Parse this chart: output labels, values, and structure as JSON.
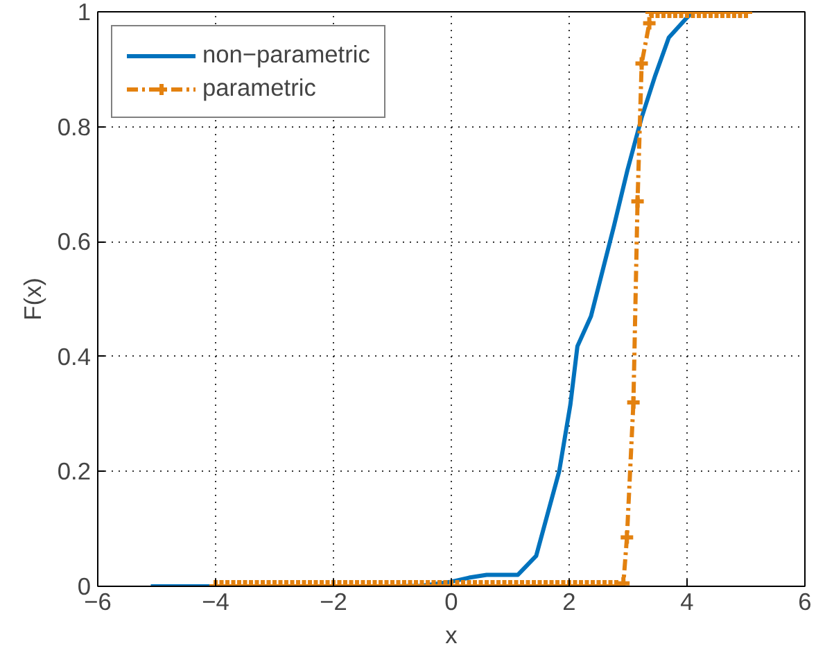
{
  "chart_data": {
    "type": "line",
    "xlabel": "x",
    "ylabel": "F(x)",
    "xlim": [
      -6,
      6
    ],
    "ylim": [
      0,
      1
    ],
    "xticks": [
      {
        "value": -6,
        "label": "−6"
      },
      {
        "value": -4,
        "label": "−4"
      },
      {
        "value": -2,
        "label": "−2"
      },
      0,
      2,
      4,
      6
    ],
    "yticks": [
      0,
      0.2,
      0.4,
      0.6,
      0.8,
      1
    ],
    "grid": true,
    "legend": "top left",
    "series": [
      {
        "name": "non−parametric",
        "color": "#0072bd",
        "marker": "none",
        "line_style": "solid",
        "x": [
          -5.1,
          -4,
          -1,
          -0.5,
          0,
          0.3,
          0.6,
          1.13,
          1.44,
          1.83,
          2.02,
          2.14,
          2.37,
          2.76,
          2.99,
          3.23,
          3.46,
          3.69,
          4.0,
          4.1
        ],
        "values": [
          0,
          0,
          0,
          0.001,
          0.008,
          0.015,
          0.02,
          0.02,
          0.053,
          0.2,
          0.316,
          0.418,
          0.47,
          0.627,
          0.725,
          0.816,
          0.889,
          0.955,
          0.99,
          1.0
        ]
      },
      {
        "name": "parametric",
        "color": "#e3810f",
        "marker": "cross",
        "line_style": "dashdot",
        "x": [
          -4.0,
          -3.9,
          -3.8,
          -3.7,
          -3.6,
          -3.5,
          -3.4,
          -3.3,
          -3.2,
          -3.1,
          -3.0,
          -2.9,
          -2.8,
          -2.7,
          -2.6,
          -2.5,
          -2.4,
          -2.3,
          -2.2,
          -2.1,
          -2.0,
          -1.9,
          -1.8,
          -1.7,
          -1.6,
          -1.5,
          -1.4,
          -1.3,
          -1.2,
          -1.1,
          -1.0,
          -0.9,
          -0.8,
          -0.7,
          -0.6,
          -0.5,
          -0.4,
          -0.3,
          -0.2,
          -0.1,
          0.0,
          0.1,
          0.2,
          0.3,
          0.4,
          0.5,
          0.6,
          0.7,
          0.8,
          0.9,
          1.0,
          1.1,
          1.2,
          1.3,
          1.4,
          1.5,
          1.6,
          1.7,
          1.8,
          1.9,
          2.0,
          2.1,
          2.2,
          2.3,
          2.4,
          2.5,
          2.6,
          2.7,
          2.8,
          2.92,
          2.98,
          3.09,
          3.16,
          3.23,
          3.36,
          3.4,
          3.5,
          3.6,
          3.7,
          3.8,
          3.9,
          4.0,
          4.1,
          4.2,
          4.3,
          4.4,
          4.5,
          4.6,
          4.7,
          4.8,
          4.9,
          5.0
        ],
        "values": [
          0,
          0,
          0,
          0,
          0,
          0,
          0,
          0,
          0,
          0,
          0,
          0,
          0,
          0,
          0,
          0,
          0,
          0,
          0,
          0,
          0,
          0,
          0,
          0,
          0,
          0,
          0,
          0,
          0,
          0,
          0,
          0,
          0,
          0,
          0,
          0,
          0,
          0,
          0,
          0,
          0,
          0,
          0,
          0,
          0,
          0,
          0,
          0,
          0,
          0,
          0,
          0,
          0,
          0,
          0,
          0,
          0,
          0,
          0,
          0,
          0,
          0,
          0,
          0,
          0,
          0,
          0,
          0,
          0,
          0.005,
          0.085,
          0.32,
          0.67,
          0.91,
          0.98,
          1,
          1,
          1,
          1,
          1,
          1,
          1,
          1,
          1,
          1,
          1,
          1,
          1,
          1,
          1,
          1,
          1
        ]
      }
    ]
  }
}
